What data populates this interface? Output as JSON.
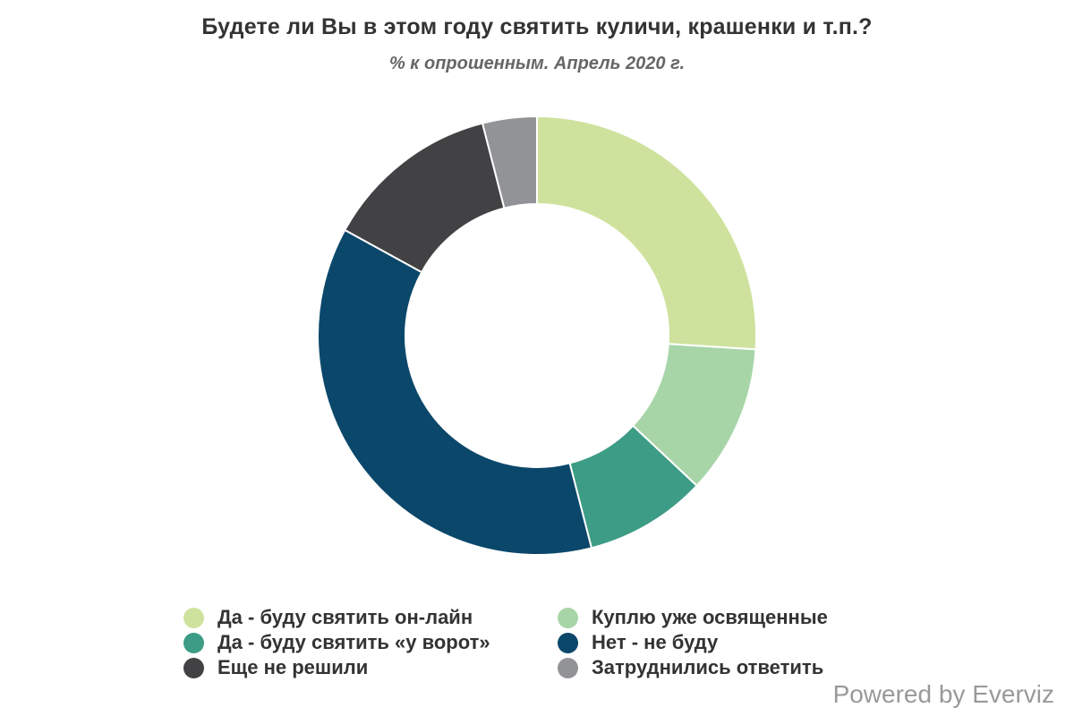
{
  "header": {
    "title": "Будете ли Вы в этом году святить куличи, крашенки и т.п.?",
    "subtitle": "% к опрошенным. Апрель 2020 г."
  },
  "legend": {
    "items": [
      {
        "label": "Да - буду святить он-лайн",
        "color": "#cfe29d"
      },
      {
        "label": "Куплю уже освященные",
        "color": "#a8d5a8"
      },
      {
        "label": "Да - буду святить «у ворот»",
        "color": "#3d9c85"
      },
      {
        "label": "Нет - не буду",
        "color": "#0b476a"
      },
      {
        "label": "Еще не решили",
        "color": "#424244"
      },
      {
        "label": "Затруднились ответить",
        "color": "#929396"
      }
    ]
  },
  "credits": {
    "label": "Powered by Everviz"
  },
  "chart_data": {
    "type": "pie",
    "variant": "donut",
    "title": "Будете ли Вы в этом году святить куличи, крашенки и т.п.?",
    "subtitle": "% к опрошенным. Апрель 2020 г.",
    "categories": [
      "Да - буду святить он-лайн",
      "Куплю уже освященные",
      "Да - буду святить «у ворот»",
      "Нет - не буду",
      "Еще не решили",
      "Затруднились ответить"
    ],
    "values": [
      26,
      11,
      9,
      37,
      13,
      4
    ],
    "colors": [
      "#cfe29d",
      "#a8d5a8",
      "#3d9c85",
      "#0b476a",
      "#424244",
      "#929396"
    ],
    "unit": "%",
    "legend_position": "bottom",
    "data_labels": false
  }
}
